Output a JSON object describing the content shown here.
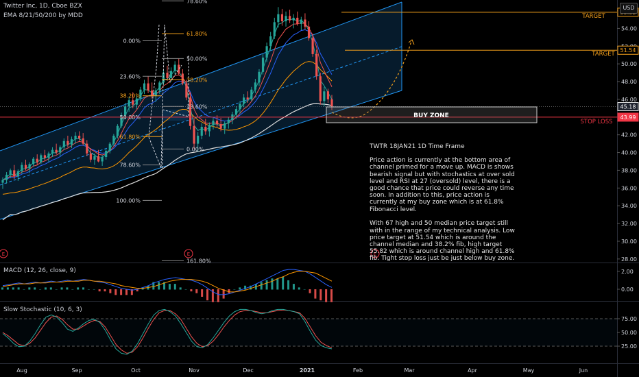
{
  "header": {
    "symbol_line": "Twitter Inc, 1D, Cboe BZX",
    "ema_line": "EMA 8/21/50/200 by MDD",
    "currency_button": "USD"
  },
  "annotation": {
    "title": "TWTR 18JAN21 1D Time Frame",
    "p1": "Price action is currently at the bottom area of channel primed for a move up.  MACD is shows bearish signal but with stochastics at over sold level and RSI at 27 (oversold) level, there is a good chance that price could reverse any time soon. In addition to this, price action is currently at my buy zone which is at 61.8% Fibonacci level.",
    "p2": "With 67 high and 50 median price target still with in the range of my technical analysis. Low price target at 51.54 which is around the channel median and 38.2% fib, high target 55.82 which is around channel high and 61.8% fib. Tight stop loss just be just below buy zone."
  },
  "buy_zone_label": "BUY ZONE",
  "target_label": "TARGET",
  "stop_loss_label": "STOP LOSS",
  "earnings_marker": "E",
  "colors": {
    "up": "#26a69a",
    "down": "#ef5350",
    "target": "#f7a21b",
    "stop": "#f23645",
    "channel": "#2196f3",
    "ema8": "#26a69a",
    "ema21": "#ef5350",
    "ema50": "#2962ff",
    "ema200": "#ff9800",
    "sma": "#e0e0e0"
  },
  "chart_data": [
    {
      "type": "candlestick",
      "title": "Twitter Inc, 1D, Cboe BZX",
      "x_ticks": [
        "Aug",
        "Sep",
        "Oct",
        "Nov",
        "Dec",
        "2021",
        "Feb",
        "Mar",
        "Apr",
        "May",
        "Jun"
      ],
      "y_ticks": [
        28,
        30,
        32,
        34,
        36,
        38,
        40,
        42,
        44,
        46,
        48,
        50,
        52,
        54,
        56
      ],
      "ylim": [
        27.6,
        57.2
      ],
      "price_tags": [
        {
          "label": "55.82",
          "value": 55.82,
          "kind": "target"
        },
        {
          "label": "51.54",
          "value": 51.54,
          "kind": "target"
        },
        {
          "label": "45.18",
          "value": 45.18,
          "kind": "last"
        },
        {
          "label": "43.99",
          "value": 43.99,
          "kind": "stop"
        }
      ],
      "fib_left": [
        {
          "label": "0.00%",
          "value": 52.6
        },
        {
          "label": "23.60%",
          "value": 48.6
        },
        {
          "label": "38.20%",
          "value": 46.4
        },
        {
          "label": "50.00%",
          "value": 44.0
        },
        {
          "label": "61.80%",
          "value": 41.8
        },
        {
          "label": "78.60%",
          "value": 38.6
        },
        {
          "label": "100.00%",
          "value": 34.6
        }
      ],
      "fib_right": [
        {
          "label": "78.60%",
          "value": 57.1
        },
        {
          "label": "61.80%",
          "value": 53.4
        },
        {
          "label": "50.00%",
          "value": 50.6
        },
        {
          "label": "38.20%",
          "value": 48.2
        },
        {
          "label": "23.60%",
          "value": 45.2
        },
        {
          "label": "0.00%",
          "value": 40.4
        },
        {
          "label": "161.80%",
          "value": 27.8
        }
      ],
      "candles": [
        [
          36.6,
          37.2,
          35.9,
          36.9
        ],
        [
          36.9,
          37.8,
          36.5,
          37.5
        ],
        [
          37.5,
          38.2,
          37.1,
          38.0
        ],
        [
          38.0,
          38.6,
          37.0,
          37.3
        ],
        [
          37.3,
          38.1,
          36.8,
          37.9
        ],
        [
          37.9,
          38.9,
          37.6,
          38.6
        ],
        [
          38.6,
          39.2,
          38.0,
          38.2
        ],
        [
          38.2,
          38.9,
          37.7,
          38.7
        ],
        [
          38.7,
          39.5,
          38.4,
          39.3
        ],
        [
          39.3,
          39.8,
          38.6,
          38.9
        ],
        [
          38.9,
          39.9,
          38.7,
          39.7
        ],
        [
          39.7,
          40.3,
          39.1,
          39.4
        ],
        [
          39.4,
          40.1,
          38.9,
          39.9
        ],
        [
          39.9,
          40.6,
          39.5,
          40.3
        ],
        [
          40.3,
          41.0,
          39.8,
          40.0
        ],
        [
          40.0,
          40.8,
          39.6,
          40.6
        ],
        [
          40.6,
          41.6,
          40.3,
          41.3
        ],
        [
          41.3,
          41.9,
          40.6,
          40.9
        ],
        [
          40.9,
          41.8,
          40.5,
          41.5
        ],
        [
          41.5,
          42.3,
          41.0,
          41.9
        ],
        [
          41.9,
          42.4,
          41.3,
          41.6
        ],
        [
          41.6,
          42.2,
          40.8,
          41.0
        ],
        [
          41.0,
          41.4,
          39.6,
          39.9
        ],
        [
          39.9,
          40.5,
          38.9,
          39.2
        ],
        [
          39.2,
          39.9,
          38.6,
          39.6
        ],
        [
          39.6,
          40.3,
          38.9,
          39.0
        ],
        [
          39.0,
          39.7,
          38.5,
          39.5
        ],
        [
          39.5,
          40.4,
          39.2,
          40.2
        ],
        [
          40.2,
          41.2,
          39.9,
          41.0
        ],
        [
          41.0,
          42.1,
          40.8,
          41.9
        ],
        [
          41.9,
          43.2,
          41.6,
          43.0
        ],
        [
          43.0,
          44.5,
          42.8,
          44.2
        ],
        [
          44.2,
          45.6,
          43.8,
          45.2
        ],
        [
          45.2,
          46.3,
          44.6,
          45.9
        ],
        [
          45.9,
          46.8,
          45.0,
          45.4
        ],
        [
          45.4,
          46.4,
          44.9,
          46.1
        ],
        [
          46.1,
          47.4,
          45.8,
          47.1
        ],
        [
          47.1,
          48.2,
          46.6,
          47.8
        ],
        [
          47.8,
          48.6,
          46.7,
          47.0
        ],
        [
          47.0,
          47.9,
          46.1,
          46.4
        ],
        [
          46.4,
          47.3,
          45.7,
          47.0
        ],
        [
          47.0,
          48.1,
          46.6,
          47.9
        ],
        [
          47.9,
          49.3,
          47.6,
          49.0
        ],
        [
          49.0,
          49.8,
          48.1,
          48.4
        ],
        [
          48.4,
          49.6,
          48.0,
          49.2
        ],
        [
          49.2,
          50.3,
          48.8,
          49.9
        ],
        [
          49.9,
          50.6,
          48.7,
          48.9
        ],
        [
          48.9,
          49.4,
          47.6,
          47.8
        ],
        [
          47.8,
          48.2,
          45.9,
          46.2
        ],
        [
          46.2,
          46.8,
          42.6,
          43.0
        ],
        [
          43.0,
          43.9,
          40.4,
          41.0
        ],
        [
          41.0,
          42.3,
          40.1,
          41.9
        ],
        [
          41.9,
          43.3,
          41.5,
          42.9
        ],
        [
          42.9,
          43.8,
          42.0,
          42.4
        ],
        [
          42.4,
          43.4,
          41.8,
          43.1
        ],
        [
          43.1,
          43.9,
          42.6,
          43.6
        ],
        [
          43.6,
          44.2,
          42.9,
          43.2
        ],
        [
          43.2,
          43.9,
          42.4,
          42.7
        ],
        [
          42.7,
          43.5,
          42.1,
          43.3
        ],
        [
          43.3,
          44.0,
          42.7,
          43.7
        ],
        [
          43.7,
          44.6,
          43.2,
          44.3
        ],
        [
          44.3,
          45.2,
          43.8,
          44.9
        ],
        [
          44.9,
          45.8,
          44.4,
          45.5
        ],
        [
          45.5,
          46.6,
          45.1,
          46.2
        ],
        [
          46.2,
          46.9,
          45.6,
          46.0
        ],
        [
          46.0,
          47.4,
          45.8,
          47.1
        ],
        [
          47.1,
          48.3,
          46.7,
          47.9
        ],
        [
          47.9,
          49.4,
          47.5,
          49.1
        ],
        [
          49.1,
          51.1,
          48.8,
          50.7
        ],
        [
          50.7,
          52.4,
          50.2,
          52.0
        ],
        [
          52.0,
          53.6,
          51.5,
          53.1
        ],
        [
          53.1,
          55.2,
          52.8,
          54.7
        ],
        [
          54.7,
          56.4,
          54.1,
          55.6
        ],
        [
          55.6,
          56.2,
          54.3,
          54.8
        ],
        [
          54.8,
          55.9,
          54.2,
          55.4
        ],
        [
          55.4,
          56.1,
          54.6,
          54.9
        ],
        [
          54.9,
          55.6,
          54.0,
          55.2
        ],
        [
          55.2,
          55.9,
          54.3,
          54.5
        ],
        [
          54.5,
          55.3,
          53.8,
          55.0
        ],
        [
          55.0,
          55.7,
          53.9,
          54.2
        ],
        [
          54.2,
          54.8,
          52.6,
          52.9
        ],
        [
          52.9,
          53.4,
          50.8,
          51.1
        ],
        [
          51.1,
          51.6,
          48.2,
          48.6
        ],
        [
          48.6,
          49.0,
          45.4,
          45.8
        ],
        [
          45.8,
          47.4,
          45.2,
          46.9
        ],
        [
          46.9,
          47.2,
          45.6,
          46.0
        ],
        [
          46.0,
          46.5,
          44.8,
          45.2
        ]
      ],
      "ema_labels": [
        "EMA 8",
        "EMA 21",
        "EMA 50",
        "EMA 200"
      ]
    },
    {
      "type": "macd",
      "title": "MACD (12, 26, close, 9)",
      "y_ticks": [
        "2.00",
        "0.00"
      ],
      "ylim": [
        -1.3,
        2.9
      ],
      "macd": [
        0.4,
        0.5,
        0.6,
        0.7,
        0.6,
        0.7,
        0.8,
        0.7,
        0.8,
        0.9,
        0.8,
        0.9,
        1.0,
        0.9,
        1.0,
        1.1,
        1.0,
        0.9,
        0.8,
        0.7,
        0.5,
        0.3,
        0.1,
        0.0,
        -0.1,
        0.0,
        0.2,
        0.4,
        0.7,
        0.9,
        1.1,
        1.2,
        1.3,
        1.2,
        1.1,
        1.0,
        0.8,
        0.5,
        0.1,
        -0.3,
        -0.6,
        -0.6,
        -0.5,
        -0.3,
        -0.1,
        0.1,
        0.3,
        0.6,
        0.9,
        1.2,
        1.5,
        1.8,
        2.1,
        2.2,
        2.2,
        2.1,
        2.0,
        1.7,
        1.3,
        0.9,
        0.5,
        0.2
      ],
      "signal": [
        0.3,
        0.4,
        0.5,
        0.6,
        0.6,
        0.6,
        0.7,
        0.7,
        0.7,
        0.8,
        0.8,
        0.8,
        0.9,
        0.9,
        0.9,
        1.0,
        1.0,
        0.9,
        0.9,
        0.8,
        0.7,
        0.6,
        0.4,
        0.3,
        0.2,
        0.1,
        0.1,
        0.2,
        0.3,
        0.5,
        0.7,
        0.9,
        1.0,
        1.1,
        1.1,
        1.1,
        1.0,
        0.9,
        0.7,
        0.4,
        0.1,
        -0.1,
        -0.3,
        -0.3,
        -0.2,
        -0.1,
        0.1,
        0.3,
        0.5,
        0.7,
        0.9,
        1.2,
        1.4,
        1.7,
        1.9,
        2.0,
        2.0,
        1.9,
        1.8,
        1.5,
        1.2,
        0.9
      ]
    },
    {
      "type": "stochastic",
      "title": "Slow Stochastic (10, 6, 3)",
      "y_ticks": [
        "75.00",
        "50.00",
        "25.00"
      ],
      "ylim": [
        0,
        100
      ],
      "k": [
        48,
        40,
        30,
        24,
        25,
        34,
        48,
        64,
        78,
        82,
        78,
        68,
        56,
        52,
        58,
        66,
        72,
        74,
        68,
        54,
        36,
        20,
        12,
        10,
        16,
        30,
        48,
        66,
        82,
        90,
        92,
        88,
        80,
        66,
        50,
        34,
        24,
        22,
        28,
        40,
        54,
        68,
        80,
        88,
        92,
        92,
        90,
        86,
        84,
        86,
        90,
        92,
        92,
        90,
        88,
        84,
        70,
        52,
        36,
        26,
        22,
        20
      ],
      "d": [
        50,
        44,
        36,
        28,
        26,
        30,
        40,
        54,
        68,
        78,
        80,
        74,
        64,
        56,
        56,
        62,
        68,
        72,
        70,
        60,
        44,
        28,
        18,
        12,
        14,
        24,
        40,
        58,
        74,
        86,
        90,
        90,
        84,
        74,
        58,
        42,
        30,
        24,
        26,
        34,
        46,
        60,
        72,
        82,
        88,
        90,
        90,
        88,
        86,
        86,
        88,
        90,
        91,
        90,
        88,
        86,
        76,
        60,
        44,
        32,
        26,
        22
      ]
    }
  ]
}
